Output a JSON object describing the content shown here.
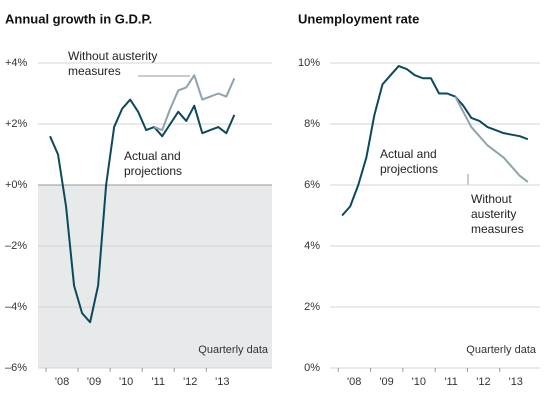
{
  "chart_data": [
    {
      "type": "line",
      "title": "Annual growth in G.D.P.",
      "x": [
        2008.125,
        2008.375,
        2008.625,
        2008.875,
        2009.125,
        2009.375,
        2009.625,
        2009.875,
        2010.125,
        2010.375,
        2010.625,
        2010.875,
        2011.125,
        2011.375,
        2011.625,
        2011.875,
        2012.125,
        2012.375,
        2012.625,
        2012.875,
        2013.125,
        2013.375,
        2013.625,
        2013.875
      ],
      "series": [
        {
          "name": "Actual and projections",
          "color": "#0b4a5c",
          "values": [
            1.6,
            1.0,
            -0.7,
            -3.3,
            -4.2,
            -4.5,
            -3.3,
            0.0,
            1.9,
            2.5,
            2.8,
            2.4,
            1.8,
            1.9,
            1.6,
            2.0,
            2.4,
            2.1,
            2.6,
            1.7,
            1.8,
            1.9,
            1.7,
            2.3
          ]
        },
        {
          "name": "Without austerity measures",
          "color": "#8fa3ad",
          "values": [
            null,
            null,
            null,
            null,
            null,
            null,
            null,
            null,
            null,
            null,
            null,
            null,
            null,
            1.9,
            1.8,
            2.5,
            3.1,
            3.2,
            3.6,
            2.8,
            2.9,
            3.0,
            2.9,
            3.5
          ]
        }
      ],
      "xlim": [
        2007.75,
        2015.05
      ],
      "xticks": [
        {
          "value": 2008.5,
          "label": "'08"
        },
        {
          "value": 2009.5,
          "label": "'09"
        },
        {
          "value": 2010.5,
          "label": "'10"
        },
        {
          "value": 2011.5,
          "label": "'11"
        },
        {
          "value": 2012.5,
          "label": "'12"
        },
        {
          "value": 2013.5,
          "label": "'13"
        }
      ],
      "ylim": [
        -6,
        4
      ],
      "yticks": [
        {
          "value": 4,
          "label": "+4%"
        },
        {
          "value": 2,
          "label": "+2%"
        },
        {
          "value": 0,
          "label": "+0%"
        },
        {
          "value": -2,
          "label": "–2%"
        },
        {
          "value": -4,
          "label": "–4%"
        },
        {
          "value": -6,
          "label": "–6%"
        }
      ],
      "grid": true,
      "shade_below_zero": true,
      "annotation": "Quarterly data"
    },
    {
      "type": "line",
      "title": "Unemployment rate",
      "x": [
        2008.125,
        2008.375,
        2008.625,
        2008.875,
        2009.125,
        2009.375,
        2009.625,
        2009.875,
        2010.125,
        2010.375,
        2010.625,
        2010.875,
        2011.125,
        2011.375,
        2011.625,
        2011.875,
        2012.125,
        2012.375,
        2012.625,
        2012.875,
        2013.125,
        2013.375,
        2013.625,
        2013.875
      ],
      "series": [
        {
          "name": "Actual and projections",
          "color": "#0b4a5c",
          "values": [
            5.0,
            5.3,
            6.0,
            6.9,
            8.3,
            9.3,
            9.6,
            9.9,
            9.8,
            9.6,
            9.5,
            9.5,
            9.0,
            9.0,
            8.9,
            8.6,
            8.2,
            8.1,
            7.9,
            7.8,
            7.7,
            7.65,
            7.6,
            7.5
          ]
        },
        {
          "name": "Without austerity measures",
          "color": "#8fa3ad",
          "values": [
            null,
            null,
            null,
            null,
            null,
            null,
            null,
            null,
            null,
            null,
            null,
            null,
            null,
            null,
            8.9,
            8.4,
            7.9,
            7.6,
            7.3,
            7.1,
            6.9,
            6.6,
            6.3,
            6.1
          ]
        }
      ],
      "xlim": [
        2007.75,
        2014.25
      ],
      "xticks": [
        {
          "value": 2008.5,
          "label": "'08"
        },
        {
          "value": 2009.5,
          "label": "'09"
        },
        {
          "value": 2010.5,
          "label": "'10"
        },
        {
          "value": 2011.5,
          "label": "'11"
        },
        {
          "value": 2012.5,
          "label": "'12"
        },
        {
          "value": 2013.5,
          "label": "'13"
        }
      ],
      "ylim": [
        0,
        10
      ],
      "yticks": [
        {
          "value": 10,
          "label": "10%"
        },
        {
          "value": 8,
          "label": "8%"
        },
        {
          "value": 6,
          "label": "6%"
        },
        {
          "value": 4,
          "label": "4%"
        },
        {
          "value": 2,
          "label": "2%"
        },
        {
          "value": 0,
          "label": "0%"
        }
      ],
      "grid": true,
      "shade_below_zero": false,
      "annotation": "Quarterly data"
    }
  ]
}
